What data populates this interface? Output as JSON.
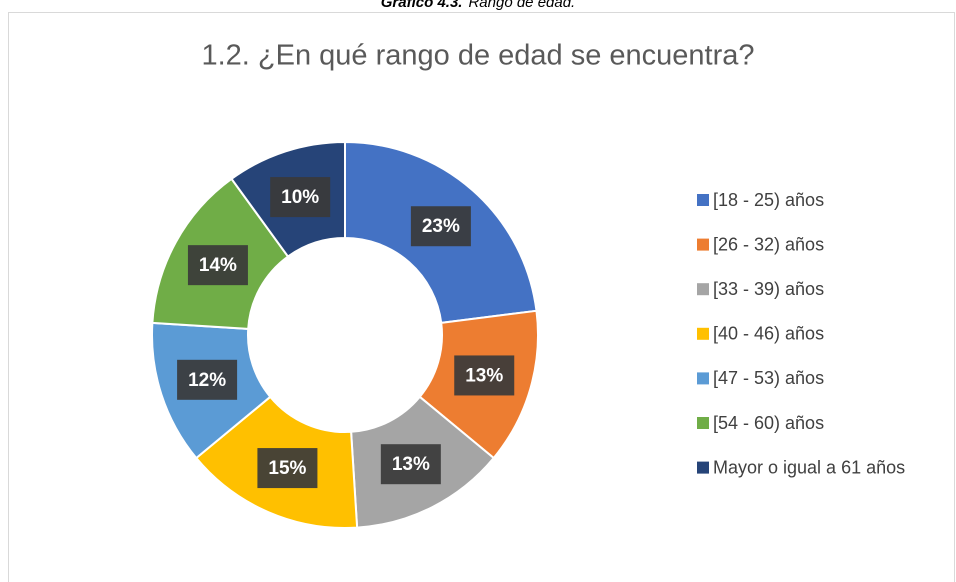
{
  "caption": {
    "label": "Gráfico 4.3.",
    "text": "Rango de edad."
  },
  "chart_data": {
    "type": "donut",
    "title": "1.2. ¿En qué rango de edad se encuentra?",
    "categories": [
      "[18 - 25) años",
      "[26 - 32) años",
      "[33 - 39) años",
      "[40 - 46) años",
      "[47 - 53) años",
      "[54 - 60) años",
      "Mayor o igual a 61 años"
    ],
    "values": [
      23,
      13,
      13,
      15,
      12,
      14,
      10
    ],
    "value_labels": [
      "23%",
      "13%",
      "13%",
      "15%",
      "12%",
      "14%",
      "10%"
    ],
    "colors": [
      "#4472c4",
      "#ed7d31",
      "#a5a5a5",
      "#ffc000",
      "#5b9bd5",
      "#70ad47",
      "#264478"
    ],
    "legend": "right"
  }
}
